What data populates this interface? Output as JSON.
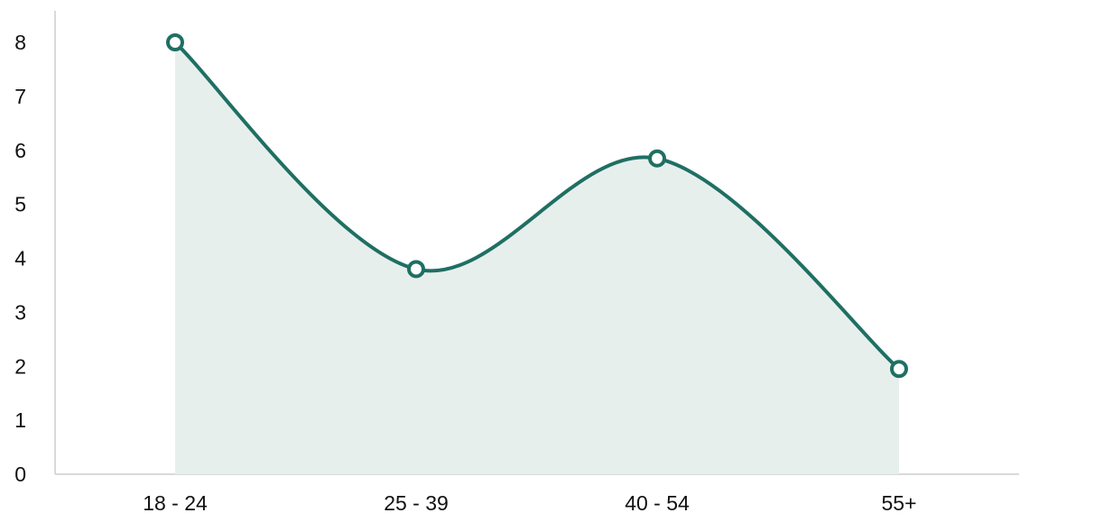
{
  "chart_data": {
    "type": "area",
    "categories": [
      "18 - 24",
      "25 - 39",
      "40 - 54",
      "55+"
    ],
    "series": [
      {
        "values": [
          8,
          3.8,
          5.85,
          1.95
        ]
      }
    ],
    "title": "",
    "xlabel": "",
    "ylabel": "",
    "ylim": [
      0,
      8
    ],
    "yticks": [
      "0",
      "1",
      "2",
      "3",
      "4",
      "5",
      "6",
      "7",
      "8"
    ],
    "grid": false,
    "legend": "none",
    "colors": {
      "line": "#1f6f63",
      "fill": "#e7efed",
      "axis": "#d9d9d9",
      "marker_fill": "#ffffff"
    }
  }
}
